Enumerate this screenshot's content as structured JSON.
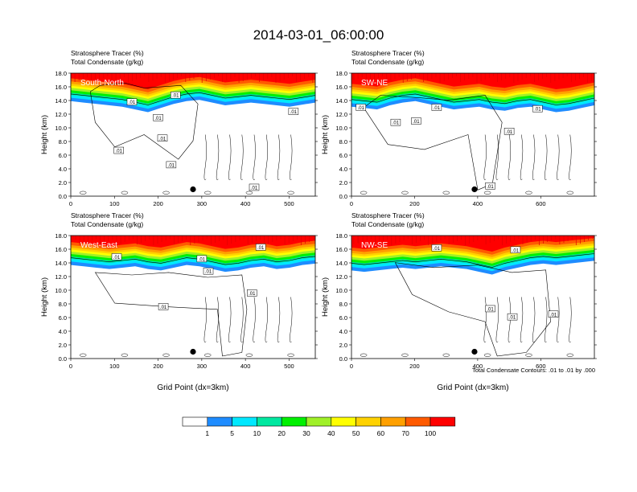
{
  "main_title": "2014-03-01_06:00:00",
  "colors": {
    "white": "#ffffff",
    "dark_blue": "#1e8cff",
    "cyan": "#00e8ff",
    "teal_green": "#00e8a0",
    "green": "#00f000",
    "yellow_green": "#a0f028",
    "yellow": "#ffff00",
    "gold": "#ffd200",
    "orange": "#ffa000",
    "orange_red": "#ff5a00",
    "red": "#ff0000",
    "contour_line": "#000000"
  },
  "chart_data": [
    {
      "type": "heatmap",
      "panel": "South-North",
      "title_left_1": "Stratosphere Tracer   (%)",
      "title_left_2": "Total Condensate   (g/kg)",
      "label": "South-North",
      "ylabel": "Height (km)",
      "xlabel": "",
      "xlim": [
        0,
        560
      ],
      "ylim": [
        0,
        18
      ],
      "xticks": [
        "0",
        "100",
        "200",
        "300",
        "400",
        "500"
      ],
      "xtick_values": [
        0,
        100,
        200,
        300,
        400,
        500
      ],
      "yticks": [
        "0.0",
        "2.0",
        "4.0",
        "6.0",
        "8.0",
        "10.0",
        "12.0",
        "14.0",
        "16.0",
        "18.0"
      ],
      "ytick_values": [
        0,
        2,
        4,
        6,
        8,
        10,
        12,
        14,
        16,
        18
      ],
      "tracer_base_km": [
        14.8,
        14.6,
        14.4,
        14.2,
        14.0,
        13.6,
        13.2,
        13.8,
        14.4,
        14.8,
        15.0,
        14.6,
        14.2,
        14.4,
        14.6,
        14.4,
        14.2,
        14.0,
        14.3,
        14.6
      ],
      "marker": {
        "x": 280,
        "y": 1.0
      },
      "contour_labels": [
        {
          "text": ".01",
          "x": 110,
          "y": 6.7
        },
        {
          "text": ".01",
          "x": 200,
          "y": 11.5
        },
        {
          "text": ".01",
          "x": 230,
          "y": 4.6
        },
        {
          "text": ".01",
          "x": 240,
          "y": 14.8
        },
        {
          "text": ".01",
          "x": 210,
          "y": 8.5
        },
        {
          "text": ".01",
          "x": 420,
          "y": 1.3
        },
        {
          "text": ".01",
          "x": 510,
          "y": 12.4
        },
        {
          "text": ".01",
          "x": 140,
          "y": 13.8
        }
      ]
    },
    {
      "type": "heatmap",
      "panel": "SW-NE",
      "title_left_1": "Stratosphere Tracer   (%)",
      "title_left_2": "Total Condensate   (g/kg)",
      "label": "SW-NE",
      "ylabel": "Height (km)",
      "xlabel": "",
      "xlim": [
        0,
        770
      ],
      "ylim": [
        0,
        18
      ],
      "xticks": [
        "0",
        "200",
        "400",
        "600"
      ],
      "xtick_values": [
        0,
        200,
        400,
        600
      ],
      "yticks": [
        "0.0",
        "2.0",
        "4.0",
        "6.0",
        "8.0",
        "10.0",
        "12.0",
        "14.0",
        "16.0",
        "18.0"
      ],
      "ytick_values": [
        0,
        2,
        4,
        6,
        8,
        10,
        12,
        14,
        16,
        18
      ],
      "tracer_base_km": [
        14.0,
        13.8,
        13.6,
        14.2,
        14.6,
        14.8,
        14.4,
        14.0,
        13.6,
        13.8,
        14.0,
        13.6,
        13.4,
        13.8,
        14.0,
        13.6,
        13.2,
        13.4,
        13.8,
        14.2
      ],
      "marker": {
        "x": 390,
        "y": 1.0
      },
      "contour_labels": [
        {
          "text": ".01",
          "x": 30,
          "y": 13.0
        },
        {
          "text": ".01",
          "x": 140,
          "y": 10.8
        },
        {
          "text": ".01",
          "x": 205,
          "y": 11.0
        },
        {
          "text": ".01",
          "x": 270,
          "y": 13.0
        },
        {
          "text": ".01",
          "x": 440,
          "y": 1.5
        },
        {
          "text": ".01",
          "x": 500,
          "y": 9.5
        },
        {
          "text": ".01",
          "x": 590,
          "y": 12.8
        }
      ]
    },
    {
      "type": "heatmap",
      "panel": "West-East",
      "title_left_1": "Stratosphere Tracer   (%)",
      "title_left_2": "Total Condensate   (g/kg)",
      "label": "West-East",
      "ylabel": "Height (km)",
      "xlabel": "Grid Point (dx=3km)",
      "xlim": [
        0,
        560
      ],
      "ylim": [
        0,
        18
      ],
      "xticks": [
        "0",
        "100",
        "200",
        "300",
        "400",
        "500"
      ],
      "xtick_values": [
        0,
        100,
        200,
        300,
        400,
        500
      ],
      "yticks": [
        "0.0",
        "2.0",
        "4.0",
        "6.0",
        "8.0",
        "10.0",
        "12.0",
        "14.0",
        "16.0",
        "18.0"
      ],
      "ytick_values": [
        0,
        2,
        4,
        6,
        8,
        10,
        12,
        14,
        16,
        18
      ],
      "tracer_base_km": [
        14.6,
        14.4,
        14.2,
        14.0,
        14.2,
        14.4,
        14.0,
        13.8,
        14.2,
        14.6,
        14.4,
        14.0,
        13.6,
        13.8,
        14.2,
        14.4,
        14.0,
        14.2,
        14.6,
        14.8
      ],
      "marker": {
        "x": 280,
        "y": 1.0
      },
      "contour_labels": [
        {
          "text": ".01",
          "x": 105,
          "y": 14.9
        },
        {
          "text": ".01",
          "x": 212,
          "y": 7.6
        },
        {
          "text": ".01",
          "x": 300,
          "y": 14.6
        },
        {
          "text": ".01",
          "x": 315,
          "y": 12.8
        },
        {
          "text": ".01",
          "x": 415,
          "y": 9.6
        },
        {
          "text": ".01",
          "x": 435,
          "y": 16.3
        }
      ]
    },
    {
      "type": "heatmap",
      "panel": "NW-SE",
      "title_left_1": "Stratosphere Tracer   (%)",
      "title_left_2": "Total Condensate   (g/kg)",
      "label": "NW-SE",
      "ylabel": "Height (km)",
      "xlabel": "Grid Point (dx=3km)",
      "xlim": [
        0,
        770
      ],
      "ylim": [
        0,
        18
      ],
      "xticks": [
        "0",
        "200",
        "400",
        "600"
      ],
      "xtick_values": [
        0,
        200,
        400,
        600
      ],
      "yticks": [
        "0.0",
        "2.0",
        "4.0",
        "6.0",
        "8.0",
        "10.0",
        "12.0",
        "14.0",
        "16.0",
        "18.0"
      ],
      "ytick_values": [
        0,
        2,
        4,
        6,
        8,
        10,
        12,
        14,
        16,
        18
      ],
      "tracer_base_km": [
        13.8,
        13.6,
        13.8,
        14.0,
        14.2,
        14.0,
        14.2,
        14.4,
        14.2,
        14.0,
        13.6,
        13.2,
        13.8,
        14.2,
        14.6,
        14.8,
        14.6,
        14.8,
        15.0,
        15.2
      ],
      "marker": {
        "x": 390,
        "y": 1.0
      },
      "contour_labels": [
        {
          "text": ".01",
          "x": 270,
          "y": 16.2
        },
        {
          "text": ".01",
          "x": 440,
          "y": 7.3
        },
        {
          "text": ".01",
          "x": 510,
          "y": 6.1
        },
        {
          "text": ".01",
          "x": 520,
          "y": 15.9
        },
        {
          "text": ".01",
          "x": 640,
          "y": 6.5
        }
      ]
    }
  ],
  "contour_info": "Total Condensate Contours: .01 to .01 by .000",
  "colorbar": {
    "labels": [
      "1",
      "5",
      "10",
      "20",
      "30",
      "40",
      "50",
      "60",
      "70",
      "100"
    ],
    "colors": [
      "#ffffff",
      "#1e8cff",
      "#00e8ff",
      "#00e8a0",
      "#00f000",
      "#a0f028",
      "#ffff00",
      "#ffd200",
      "#ffa000",
      "#ff5a00",
      "#ff0000"
    ]
  }
}
